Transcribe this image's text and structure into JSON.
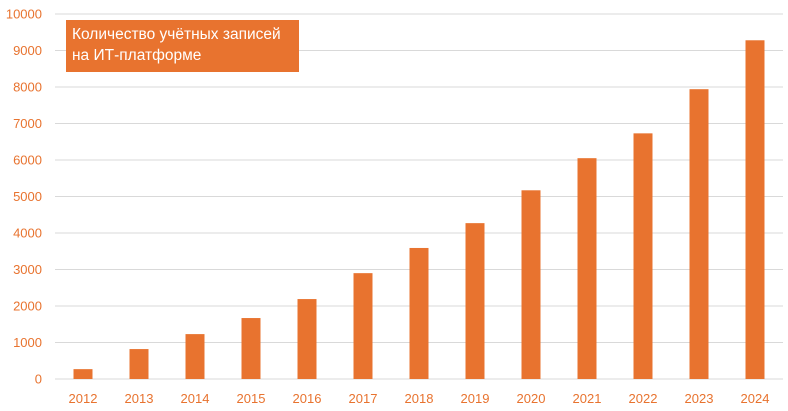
{
  "chart_data": {
    "type": "bar",
    "title_lines": [
      "Количество учётных записей",
      "на ИТ-платформе"
    ],
    "categories": [
      "2012",
      "2013",
      "2014",
      "2015",
      "2016",
      "2017",
      "2018",
      "2019",
      "2020",
      "2021",
      "2022",
      "2023",
      "2024"
    ],
    "values": [
      270,
      820,
      1230,
      1670,
      2190,
      2900,
      3590,
      4270,
      5170,
      6050,
      6730,
      7940,
      9280
    ],
    "ylim": [
      0,
      10000
    ],
    "yticks": [
      "0",
      "1000",
      "2000",
      "3000",
      "4000",
      "5000",
      "6000",
      "7000",
      "8000",
      "9000",
      "10000"
    ],
    "xlabel": "",
    "ylabel": "",
    "grid": true,
    "colors": {
      "bar": "#E8732F",
      "tick_text": "#E8732F",
      "grid": "#d9d9d9",
      "title_bg": "#E8732F",
      "title_text": "#ffffff"
    }
  }
}
